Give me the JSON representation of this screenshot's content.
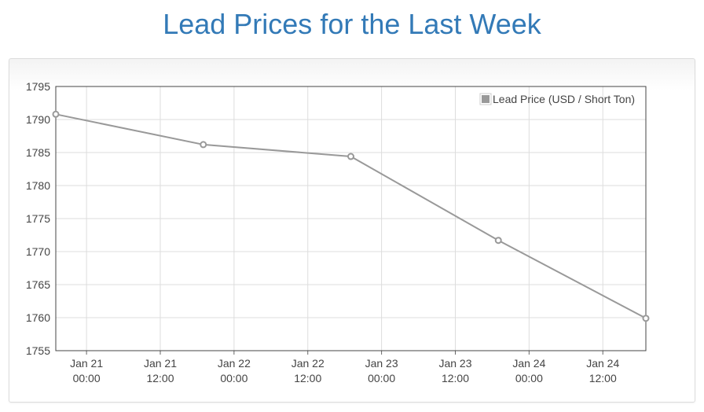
{
  "page": {
    "title": "Lead Prices for the Last Week"
  },
  "chart_data": {
    "type": "line",
    "title": "Lead Prices for the Last Week",
    "xlabel": "",
    "ylabel": "",
    "series": [
      {
        "name": "Lead Price (USD / Short Ton)",
        "color": "#999999",
        "points": [
          {
            "x": "2017-01-20T19:00",
            "y": 1790.8
          },
          {
            "x": "2017-01-21T19:00",
            "y": 1786.2
          },
          {
            "x": "2017-01-22T19:00",
            "y": 1784.4
          },
          {
            "x": "2017-01-23T19:00",
            "y": 1771.7
          },
          {
            "x": "2017-01-24T19:00",
            "y": 1759.9
          }
        ]
      }
    ],
    "ylim": [
      1755,
      1795
    ],
    "yticks": [
      1795,
      1790,
      1785,
      1780,
      1775,
      1770,
      1765,
      1760,
      1755
    ],
    "xlim": [
      "2017-01-20T19:00",
      "2017-01-24T19:00"
    ],
    "xticks": [
      {
        "x": "2017-01-21T00:00",
        "line1": "Jan 21",
        "line2": "00:00"
      },
      {
        "x": "2017-01-21T12:00",
        "line1": "Jan 21",
        "line2": "12:00"
      },
      {
        "x": "2017-01-22T00:00",
        "line1": "Jan 22",
        "line2": "00:00"
      },
      {
        "x": "2017-01-22T12:00",
        "line1": "Jan 22",
        "line2": "12:00"
      },
      {
        "x": "2017-01-23T00:00",
        "line1": "Jan 23",
        "line2": "00:00"
      },
      {
        "x": "2017-01-23T12:00",
        "line1": "Jan 23",
        "line2": "12:00"
      },
      {
        "x": "2017-01-24T00:00",
        "line1": "Jan 24",
        "line2": "00:00"
      },
      {
        "x": "2017-01-24T12:00",
        "line1": "Jan 24",
        "line2": "12:00"
      }
    ],
    "grid": true,
    "legend_position": "top-right"
  }
}
